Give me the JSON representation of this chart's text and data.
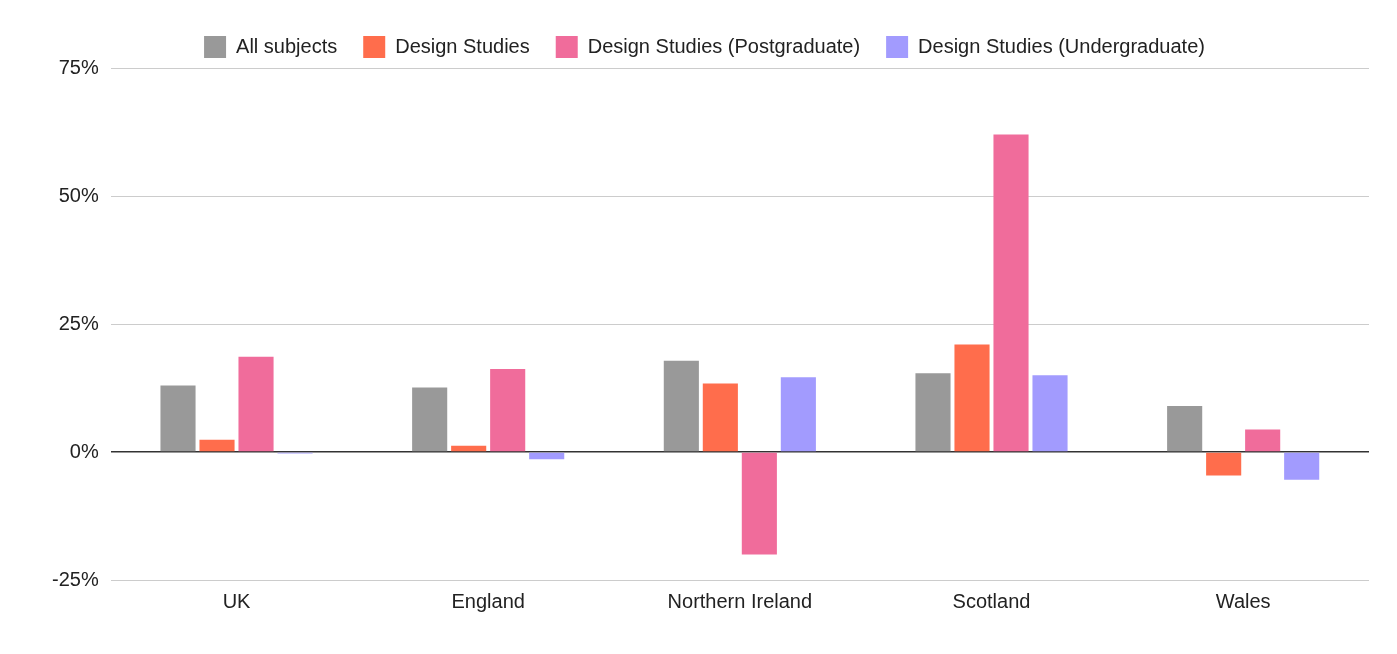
{
  "chart_data": {
    "type": "bar",
    "categories": [
      "UK",
      "England",
      "Northern Ireland",
      "Scotland",
      "Wales"
    ],
    "series": [
      {
        "name": "All subjects",
        "color": "#999999",
        "values": [
          13,
          12.6,
          17.8,
          15.4,
          9
        ]
      },
      {
        "name": "Design Studies",
        "color": "#ff6d4c",
        "values": [
          2.4,
          1.2,
          13.4,
          21,
          -4.6
        ]
      },
      {
        "name": "Design Studies (Postgraduate)",
        "color": "#f06c9b",
        "values": [
          18.6,
          16.2,
          -20,
          62,
          4.4
        ]
      },
      {
        "name": "Design Studies (Undergraduate)",
        "color": "#a29bfe",
        "values": [
          -0.3,
          -1.4,
          14.6,
          15,
          -5.4
        ]
      }
    ],
    "ylim": [
      -25,
      75
    ],
    "yticks": [
      {
        "value": -25,
        "label": "-25%"
      },
      {
        "value": 0,
        "label": "0%"
      },
      {
        "value": 25,
        "label": "25%"
      },
      {
        "value": 50,
        "label": "50%"
      },
      {
        "value": 75,
        "label": "75%"
      }
    ],
    "grid": "y",
    "legend": "top"
  }
}
